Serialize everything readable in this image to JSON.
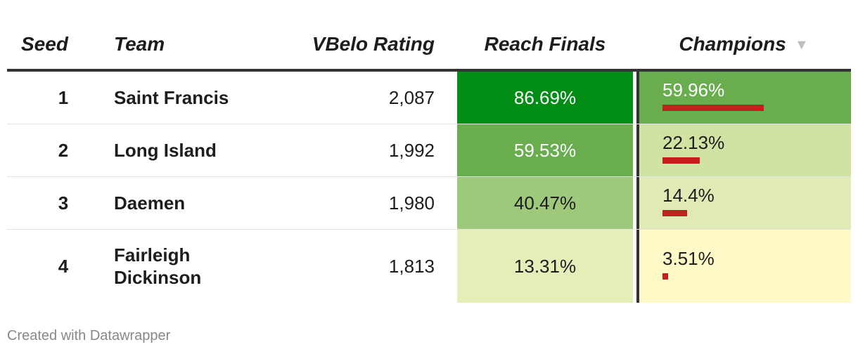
{
  "header": {
    "seed": "Seed",
    "team": "Team",
    "rating": "VBelo Rating",
    "finals": "Reach Finals",
    "champions": "Champions",
    "sort_icon": "sort-desc-icon"
  },
  "chart_data": {
    "type": "table",
    "columns": [
      "Seed",
      "Team",
      "VBelo Rating",
      "Reach Finals",
      "Champions"
    ],
    "rows": [
      {
        "seed": "1",
        "team": "Saint Francis",
        "rating": "2,087",
        "finals": "86.69%",
        "champions": "59.96%",
        "finals_value": 86.69,
        "champions_value": 59.96
      },
      {
        "seed": "2",
        "team": "Long Island",
        "rating": "1,992",
        "finals": "59.53%",
        "champions": "22.13%",
        "finals_value": 59.53,
        "champions_value": 22.13
      },
      {
        "seed": "3",
        "team": "Daemen",
        "rating": "1,980",
        "finals": "40.47%",
        "champions": "14.4%",
        "finals_value": 40.47,
        "champions_value": 14.4
      },
      {
        "seed": "4",
        "team": "Fairleigh Dickinson",
        "rating": "1,813",
        "finals": "13.31%",
        "champions": "3.51%",
        "finals_value": 13.31,
        "champions_value": 3.51
      }
    ],
    "sorted_by": "Champions",
    "sort_order": "descending"
  },
  "colors": {
    "bar": "#c71e1d",
    "heat_high": "#008c15",
    "heat_mid": "#69ad4f",
    "heat_low": "#9fc97a",
    "heat_lighter": "#d0e3a3",
    "heat_lowest": "#fff9c8"
  },
  "cell_colors": {
    "finals": [
      "#008c15",
      "#69ad4f",
      "#9fc97a",
      "#e5edb8"
    ],
    "champions": [
      "#69ad4f",
      "#d0e3a3",
      "#dfeab5",
      "#fff9c8"
    ],
    "finals_text": [
      "#ffffff",
      "#ffffff",
      "#1d1d1d",
      "#1d1d1d"
    ],
    "champions_text": [
      "#ffffff",
      "#1d1d1d",
      "#1d1d1d",
      "#1d1d1d"
    ]
  },
  "footer": "Created with Datawrapper"
}
